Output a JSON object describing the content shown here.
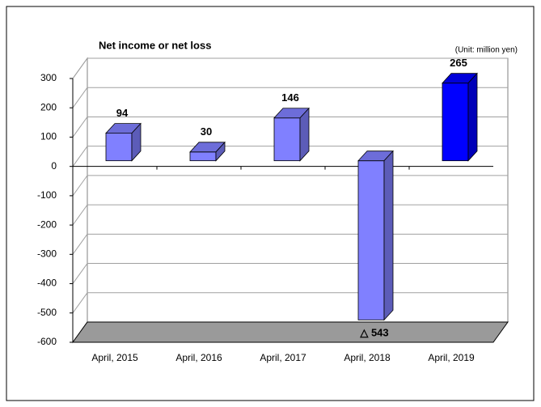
{
  "chart_data": {
    "type": "bar3d",
    "title": "Net income or net loss",
    "annotation": "(Unit: million yen)",
    "categories": [
      "April, 2015",
      "April, 2016",
      "April, 2017",
      "April, 2018",
      "April, 2019"
    ],
    "values": [
      94,
      30,
      146,
      -543,
      265
    ],
    "value_labels": [
      "94",
      "30",
      "146",
      "△ 543",
      "265"
    ],
    "colors": [
      "#8080ff",
      "#8080ff",
      "#8080ff",
      "#8080ff",
      "#0000ff"
    ],
    "ylim": [
      -600,
      300
    ],
    "yticks": [
      -600,
      -500,
      -400,
      -300,
      -200,
      -100,
      0,
      100,
      200,
      300
    ],
    "grid": true
  }
}
